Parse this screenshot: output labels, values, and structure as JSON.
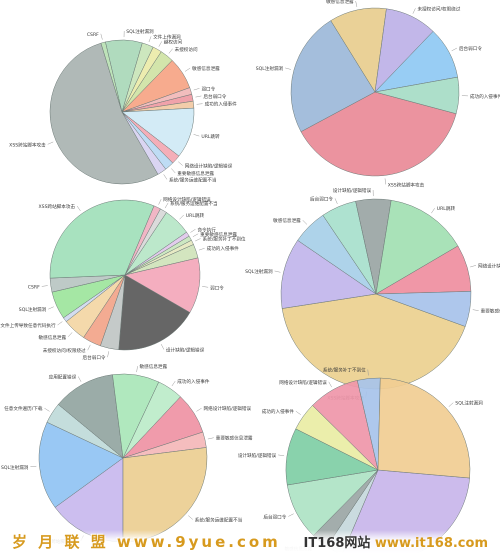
{
  "chart_data": [
    {
      "type": "pie",
      "labels": [
        "XSS跨站脚本攻击",
        "CSRF",
        "SQL注射漏洞",
        "文件上传漏洞",
        "越权访问",
        "未授权访问",
        "敏感信息泄露",
        "弱口令",
        "后台弱口令",
        "成功的入侵事件",
        "URL跳转",
        "网络设计缺陷/逻辑错误",
        "重要敏感信息泄露",
        "系统/服务运维配置不当"
      ],
      "values": [
        52.0,
        1.0,
        8.0,
        2.5,
        2.0,
        3.0,
        7.0,
        1.5,
        1.5,
        1.5,
        11.0,
        2.0,
        2.0,
        2.0
      ],
      "colors": [
        "#a9b3b1",
        "#b9e1b3",
        "#a9d8b8",
        "#c9e5b9",
        "#eaeaa8",
        "#cfe3a4",
        "#f6a484",
        "#f1b7b7",
        "#ef9aa3",
        "#f2c9a3",
        "#cfe9f5",
        "#f3a7b2",
        "#b8d9f3",
        "#d7d1f1"
      ]
    },
    {
      "type": "pie",
      "labels": [
        "XSS跨站脚本攻击",
        "SQL注射漏洞",
        "敏感信息泄露",
        "未授权访问/权限绕过",
        "后台弱口令",
        "成功的入侵事件"
      ],
      "values": [
        38.0,
        24.0,
        11.0,
        10.0,
        10.0,
        7.0
      ],
      "colors": [
        "#e98a97",
        "#9cb9d9",
        "#e8cd8e",
        "#bdb1e7",
        "#8fc9f3",
        "#a6dcc6"
      ]
    },
    {
      "type": "pie",
      "labels": [
        "设计缺陷/逻辑错误",
        "后台弱口令",
        "未授权访问/权限绕过",
        "敏感信息泄露",
        "文件上传导致任意代码执行",
        "SQL注射漏洞",
        "CSRF",
        "XSS跨站脚本攻击",
        "网络设计缺陷/逻辑错误",
        "系统/服务运维配置不当",
        "URL跳转",
        "命令执行",
        "重要敏感信息泄露",
        "系统/服务补丁不到位",
        "成功的入侵事件",
        "弱口令"
      ],
      "values": [
        18.0,
        4.0,
        4.0,
        5.0,
        1.0,
        6.0,
        3.0,
        32.0,
        1.5,
        1.5,
        6.0,
        1.0,
        1.0,
        1.0,
        3.0,
        12.0
      ],
      "colors": [
        "#595959",
        "#c0c6c4",
        "#f2a489",
        "#f3d6a4",
        "#cfd9ee",
        "#9de59c",
        "#b9c5c2",
        "#a1e0ba",
        "#f0b0c0",
        "#d8d8d8",
        "#b6e6c7",
        "#e0c8ea",
        "#c8e6bd",
        "#e5e8bf",
        "#cfe3ba",
        "#f3a7ba"
      ]
    },
    {
      "type": "pie",
      "labels": [
        "XSS跨站脚本攻击",
        "SQL注射漏洞",
        "敏感信息泄露",
        "后台弱口令",
        "设计缺陷/逻辑错误",
        "URL跳转",
        "网络设计缺陷/逻辑错误",
        "重要敏感信息泄露"
      ],
      "values": [
        42.0,
        12.0,
        6.0,
        6.0,
        6.0,
        14.0,
        8.0,
        6.0
      ],
      "colors": [
        "#ebd08f",
        "#c1b5ec",
        "#a7cfe8",
        "#a7e0cc",
        "#9aa5a4",
        "#a2e0b2",
        "#ef8ea0",
        "#a7c2ea"
      ]
    },
    {
      "type": "pie",
      "labels": [
        "XSS跨站脚本攻击",
        "SQL注射漏洞",
        "任意文件遍历/下载",
        "应用配置错误",
        "敏感信息泄露",
        "成功的入侵事件",
        "网络设计缺陷/逻辑错误",
        "重要敏感信息泄露",
        "系统/服务运维配置不当"
      ],
      "values": [
        15.0,
        17.0,
        4.0,
        12.0,
        9.0,
        5.0,
        8.0,
        3.0,
        27.0
      ],
      "colors": [
        "#c8b9ee",
        "#90c3f3",
        "#bfdad9",
        "#93a5a1",
        "#a9e6b8",
        "#bcebc9",
        "#ef92a4",
        "#f4b7b8",
        "#ebce91"
      ]
    },
    {
      "type": "pie",
      "labels": [
        "XSS跨站脚本攻击",
        "应用配置错误",
        "敏感信息泄露",
        "后台弱口令",
        "设计缺陷/逻辑错误",
        "成功的入侵事件",
        "网络设计缺陷/逻辑错误",
        "系统/服务补丁不到位",
        "SQL注射漏洞"
      ],
      "values": [
        30.0,
        3.0,
        3.0,
        10.0,
        10.0,
        5.0,
        9.0,
        4.0,
        26.0
      ],
      "colors": [
        "#c8b5ea",
        "#c6d8dc",
        "#9ba6a5",
        "#aee3c4",
        "#7fcea5",
        "#e9eda4",
        "#ef96a9",
        "#a7c3ea",
        "#f1cd93"
      ]
    }
  ],
  "watermark": {
    "left": "岁 月 联 盟   www.9yue.com",
    "right_prefix": "IT168网站",
    "right_sep": " ",
    "right_site": "www.it168.com"
  }
}
